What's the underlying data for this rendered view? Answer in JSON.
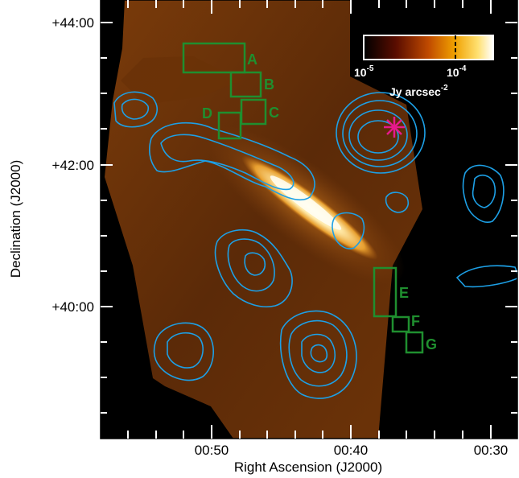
{
  "figure": {
    "x_axis_title": "Right Ascension (J2000)",
    "y_axis_title": "Declination (J2000)",
    "x_tick_labels": [
      "00:50",
      "00:40",
      "00:30"
    ],
    "y_tick_labels": [
      "+44:00",
      "+42:00",
      "+40:00"
    ]
  },
  "colorbar": {
    "tick_low": "10",
    "tick_low_exp": "-5",
    "tick_high": "10",
    "tick_high_exp": "-4",
    "unit_text": "Jy arcsec",
    "unit_exp": "-2"
  },
  "regions": [
    {
      "label": "A"
    },
    {
      "label": "B"
    },
    {
      "label": "C"
    },
    {
      "label": "D"
    },
    {
      "label": "E"
    },
    {
      "label": "F"
    },
    {
      "label": "G"
    }
  ],
  "colors": {
    "background": "#000000",
    "contour": "#1da0e6",
    "region": "#1f8f2f",
    "marker": "#e6198c",
    "map_dark": "#3a1a05",
    "map_mid": "#a5560f",
    "map_bright": "#fff6d8"
  }
}
